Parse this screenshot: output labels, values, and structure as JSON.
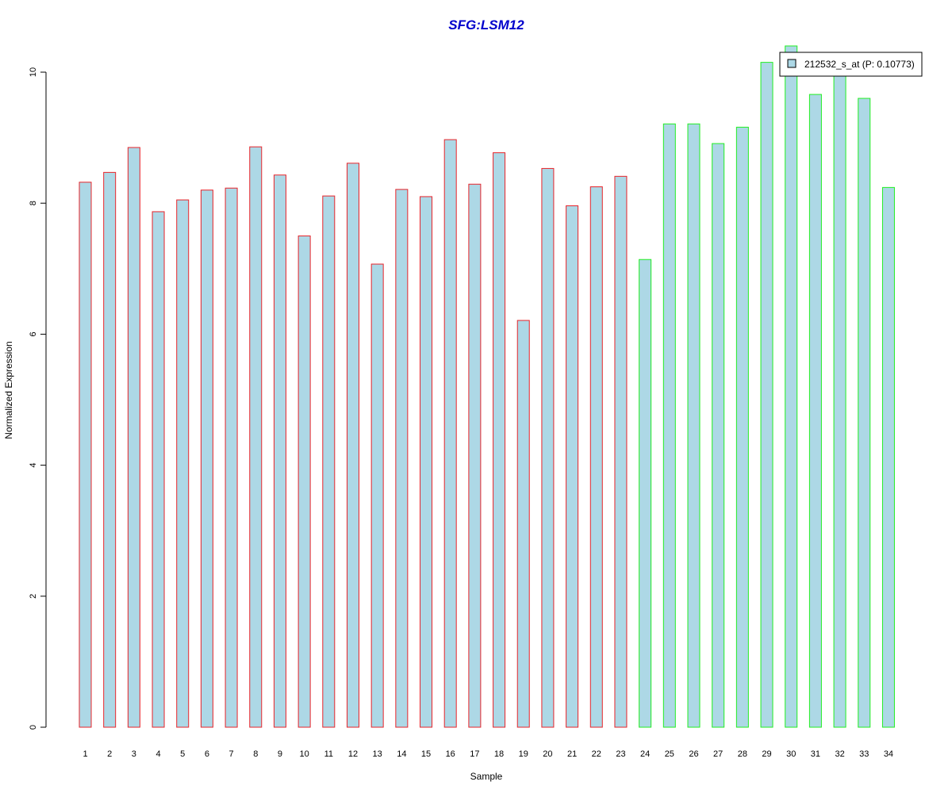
{
  "chart_data": {
    "type": "bar",
    "title": "SFG:LSM12",
    "xlabel": "Sample",
    "ylabel": "Normalized Expression",
    "ylim": [
      0,
      10
    ],
    "y_ticks": [
      0,
      2,
      4,
      6,
      8,
      10
    ],
    "grid": false,
    "legend_position": "top-right",
    "categories": [
      "1",
      "2",
      "3",
      "4",
      "5",
      "6",
      "7",
      "8",
      "9",
      "10",
      "11",
      "12",
      "13",
      "14",
      "15",
      "16",
      "17",
      "18",
      "19",
      "20",
      "21",
      "22",
      "23",
      "24",
      "25",
      "26",
      "27",
      "28",
      "29",
      "30",
      "31",
      "32",
      "33",
      "34"
    ],
    "series": [
      {
        "name": "212532_s_at (P: 0.10773)",
        "values": [
          8.32,
          8.47,
          8.85,
          7.87,
          8.05,
          8.2,
          8.23,
          8.86,
          8.43,
          7.5,
          8.11,
          8.61,
          7.07,
          8.21,
          8.1,
          8.97,
          8.29,
          8.77,
          6.21,
          8.53,
          7.96,
          8.25,
          8.41,
          7.14,
          9.21,
          9.21,
          8.91,
          9.16,
          10.15,
          10.4,
          9.66,
          10.05,
          9.6,
          8.24
        ]
      }
    ],
    "groups": [
      {
        "samples": [
          1,
          23
        ],
        "border_color": "#e8242a"
      },
      {
        "samples": [
          24,
          34
        ],
        "border_color": "#22ee22"
      }
    ],
    "colors": {
      "bar_fill": "#add8e6",
      "title": "#0000cc",
      "axis": "#000000"
    }
  }
}
